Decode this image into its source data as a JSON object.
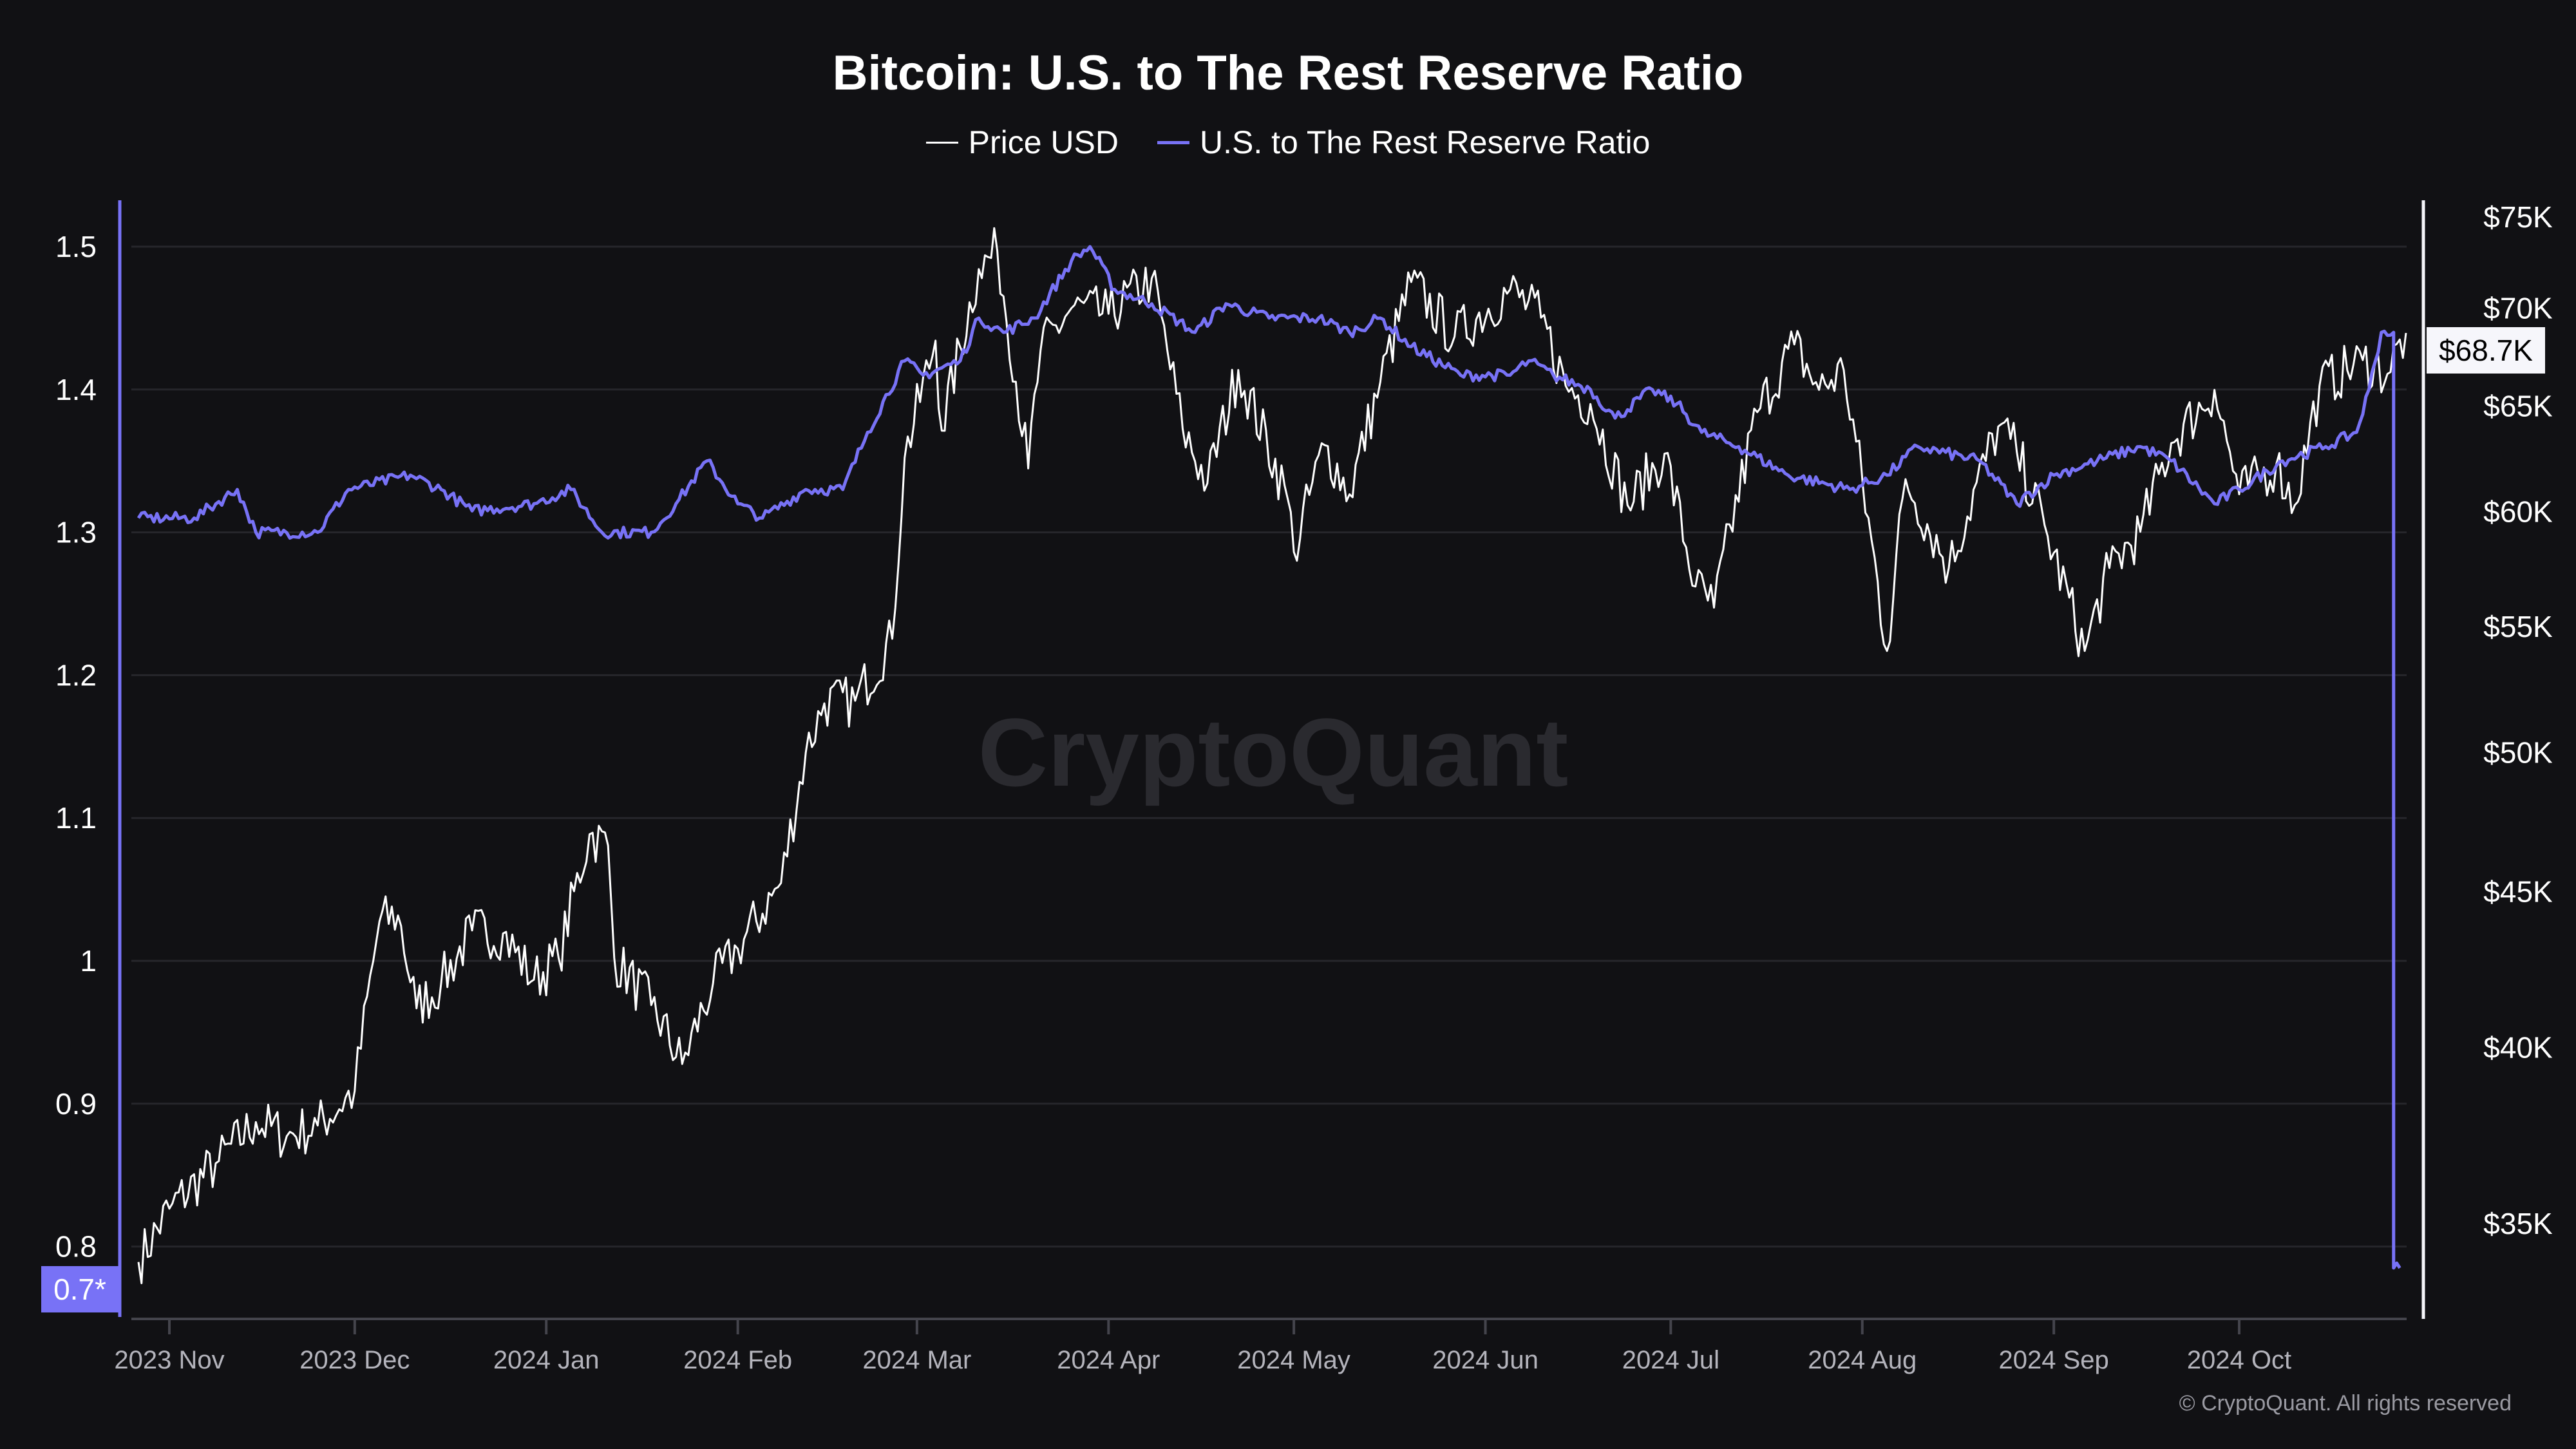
{
  "chart_data": {
    "type": "line",
    "title": "Bitcoin: U.S. to The Rest Reserve Ratio",
    "legend": [
      "Price USD",
      "U.S. to The Rest Reserve Ratio"
    ],
    "legend_placement": "top-center",
    "colors": {
      "price": "#ffffff",
      "ratio": "#7872f6",
      "background": "#111114",
      "grid": "#26262b"
    },
    "left_axis": {
      "scale": "linear",
      "ticks": [
        "1.5",
        "1.4",
        "1.3",
        "1.2",
        "1.1",
        "1",
        "0.9",
        "0.8"
      ],
      "range": [
        0.75,
        1.53
      ]
    },
    "right_axis": {
      "scale": "log",
      "ticks": [
        "$75K",
        "$70K",
        "$65K",
        "$60K",
        "$55K",
        "$50K",
        "$45K",
        "$40K",
        "$35K"
      ],
      "range": [
        33000,
        77000
      ]
    },
    "x_ticks": [
      "2023 Nov",
      "2023 Dec",
      "2024 Jan",
      "2024 Feb",
      "2024 Mar",
      "2024 Apr",
      "2024 May",
      "2024 Jun",
      "2024 Jul",
      "2024 Aug",
      "2024 Sep",
      "2024 Oct"
    ],
    "last_price_label": "$68.7K",
    "last_ratio_label": "0.7*",
    "watermark": "CryptoQuant",
    "copyright": "© CryptoQuant. All rights reserved",
    "price_usd": [
      [
        "2023-10-27",
        34000
      ],
      [
        "2023-11-01",
        35400
      ],
      [
        "2023-11-09",
        36700
      ],
      [
        "2023-11-15",
        37800
      ],
      [
        "2023-11-20",
        37400
      ],
      [
        "2023-11-25",
        37700
      ],
      [
        "2023-12-01",
        38700
      ],
      [
        "2023-12-05",
        44000
      ],
      [
        "2023-12-08",
        44200
      ],
      [
        "2023-12-11",
        41200
      ],
      [
        "2023-12-15",
        42000
      ],
      [
        "2023-12-20",
        43700
      ],
      [
        "2023-12-25",
        43600
      ],
      [
        "2023-12-30",
        42100
      ],
      [
        "2024-01-03",
        42800
      ],
      [
        "2024-01-08",
        47000
      ],
      [
        "2024-01-11",
        46600
      ],
      [
        "2024-01-12",
        42800
      ],
      [
        "2024-01-18",
        41300
      ],
      [
        "2024-01-23",
        39500
      ],
      [
        "2024-01-28",
        42000
      ],
      [
        "2024-02-01",
        43100
      ],
      [
        "2024-02-08",
        45300
      ],
      [
        "2024-02-12",
        50000
      ],
      [
        "2024-02-15",
        51900
      ],
      [
        "2024-02-20",
        52000
      ],
      [
        "2024-02-26",
        54500
      ],
      [
        "2024-02-28",
        62500
      ],
      [
        "2024-03-04",
        68300
      ],
      [
        "2024-03-05",
        63800
      ],
      [
        "2024-03-11",
        72100
      ],
      [
        "2024-03-14",
        73100
      ],
      [
        "2024-03-19",
        62000
      ],
      [
        "2024-03-21",
        67800
      ],
      [
        "2024-03-26",
        70000
      ],
      [
        "2024-04-01",
        69700
      ],
      [
        "2024-04-08",
        71600
      ],
      [
        "2024-04-13",
        63900
      ],
      [
        "2024-04-17",
        61300
      ],
      [
        "2024-04-22",
        66800
      ],
      [
        "2024-04-30",
        60600
      ],
      [
        "2024-05-01",
        58200
      ],
      [
        "2024-05-06",
        63100
      ],
      [
        "2024-05-10",
        60800
      ],
      [
        "2024-05-15",
        66200
      ],
      [
        "2024-05-20",
        71400
      ],
      [
        "2024-05-27",
        68500
      ],
      [
        "2024-06-05",
        71000
      ],
      [
        "2024-06-10",
        69500
      ],
      [
        "2024-06-14",
        66000
      ],
      [
        "2024-06-18",
        65100
      ],
      [
        "2024-06-24",
        60300
      ],
      [
        "2024-06-30",
        62700
      ],
      [
        "2024-07-05",
        56700
      ],
      [
        "2024-07-08",
        55800
      ],
      [
        "2024-07-15",
        64700
      ],
      [
        "2024-07-21",
        68100
      ],
      [
        "2024-07-25",
        65800
      ],
      [
        "2024-07-29",
        66800
      ],
      [
        "2024-08-05",
        54000
      ],
      [
        "2024-08-08",
        61500
      ],
      [
        "2024-08-15",
        57500
      ],
      [
        "2024-08-23",
        64000
      ],
      [
        "2024-08-26",
        62800
      ],
      [
        "2024-08-31",
        58900
      ],
      [
        "2024-09-06",
        54000
      ],
      [
        "2024-09-10",
        57500
      ],
      [
        "2024-09-15",
        59100
      ],
      [
        "2024-09-20",
        63200
      ],
      [
        "2024-09-27",
        65800
      ],
      [
        "2024-10-01",
        60800
      ],
      [
        "2024-10-07",
        62200
      ],
      [
        "2024-10-10",
        60300
      ],
      [
        "2024-10-14",
        66000
      ],
      [
        "2024-10-21",
        67300
      ],
      [
        "2024-10-25",
        66600
      ],
      [
        "2024-10-28",
        68700
      ]
    ],
    "reserve_ratio": [
      [
        "2023-10-27",
        1.31
      ],
      [
        "2023-11-05",
        1.31
      ],
      [
        "2023-11-12",
        1.33
      ],
      [
        "2023-11-15",
        1.3
      ],
      [
        "2023-11-25",
        1.3
      ],
      [
        "2023-11-30",
        1.33
      ],
      [
        "2023-12-10",
        1.34
      ],
      [
        "2023-12-15",
        1.33
      ],
      [
        "2023-12-20",
        1.315
      ],
      [
        "2023-12-30",
        1.32
      ],
      [
        "2024-01-05",
        1.33
      ],
      [
        "2024-01-10",
        1.3
      ],
      [
        "2024-01-18",
        1.3
      ],
      [
        "2024-01-22",
        1.32
      ],
      [
        "2024-01-27",
        1.35
      ],
      [
        "2024-02-01",
        1.32
      ],
      [
        "2024-02-05",
        1.31
      ],
      [
        "2024-02-12",
        1.33
      ],
      [
        "2024-02-18",
        1.33
      ],
      [
        "2024-02-22",
        1.37
      ],
      [
        "2024-02-28",
        1.42
      ],
      [
        "2024-03-02",
        1.41
      ],
      [
        "2024-03-08",
        1.42
      ],
      [
        "2024-03-11",
        1.45
      ],
      [
        "2024-03-15",
        1.44
      ],
      [
        "2024-03-20",
        1.45
      ],
      [
        "2024-03-26",
        1.49
      ],
      [
        "2024-03-29",
        1.5
      ],
      [
        "2024-04-02",
        1.47
      ],
      [
        "2024-04-08",
        1.46
      ],
      [
        "2024-04-15",
        1.44
      ],
      [
        "2024-04-20",
        1.46
      ],
      [
        "2024-04-27",
        1.45
      ],
      [
        "2024-05-05",
        1.45
      ],
      [
        "2024-05-10",
        1.44
      ],
      [
        "2024-05-15",
        1.45
      ],
      [
        "2024-05-20",
        1.43
      ],
      [
        "2024-05-28",
        1.41
      ],
      [
        "2024-06-05",
        1.41
      ],
      [
        "2024-06-08",
        1.42
      ],
      [
        "2024-06-12",
        1.41
      ],
      [
        "2024-06-18",
        1.4
      ],
      [
        "2024-06-22",
        1.38
      ],
      [
        "2024-06-28",
        1.4
      ],
      [
        "2024-07-02",
        1.39
      ],
      [
        "2024-07-06",
        1.37
      ],
      [
        "2024-07-12",
        1.36
      ],
      [
        "2024-07-20",
        1.34
      ],
      [
        "2024-07-30",
        1.33
      ],
      [
        "2024-08-05",
        1.34
      ],
      [
        "2024-08-10",
        1.36
      ],
      [
        "2024-08-20",
        1.35
      ],
      [
        "2024-08-26",
        1.32
      ],
      [
        "2024-09-01",
        1.34
      ],
      [
        "2024-09-08",
        1.35
      ],
      [
        "2024-09-15",
        1.36
      ],
      [
        "2024-09-20",
        1.35
      ],
      [
        "2024-09-27",
        1.32
      ],
      [
        "2024-10-01",
        1.33
      ],
      [
        "2024-10-08",
        1.35
      ],
      [
        "2024-10-15",
        1.36
      ],
      [
        "2024-10-20",
        1.37
      ],
      [
        "2024-10-22",
        1.4
      ],
      [
        "2024-10-24",
        1.44
      ],
      [
        "2024-10-26",
        1.44
      ],
      [
        "2024-10-26",
        0.785
      ],
      [
        "2024-10-27",
        0.785
      ]
    ]
  }
}
